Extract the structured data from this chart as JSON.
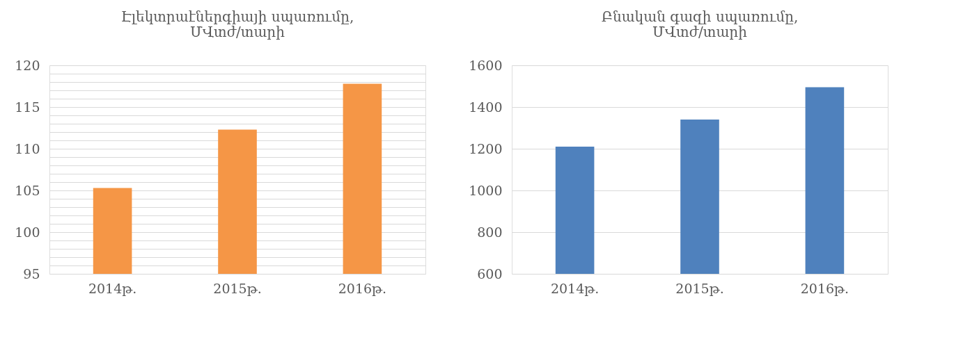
{
  "chart_data": [
    {
      "type": "bar",
      "title": "Էլեկտրաէներգիայի սպառումը,\nՄՎտժ/տարի",
      "categories": [
        "2014թ.",
        "2015թ.",
        "2016թ."
      ],
      "series": [
        {
          "color": "#f59646",
          "values": [
            105.3,
            112.3,
            117.8
          ]
        }
      ],
      "ylim": [
        95,
        120
      ],
      "yticks": [
        95,
        {
          "value": 96,
          "label": null
        },
        {
          "value": 97,
          "label": null
        },
        {
          "value": 98,
          "label": null
        },
        {
          "value": 99,
          "label": null
        },
        100,
        {
          "value": 101,
          "label": null
        },
        {
          "value": 102,
          "label": null
        },
        {
          "value": 103,
          "label": null
        },
        {
          "value": 104,
          "label": null
        },
        105,
        {
          "value": 106,
          "label": null
        },
        {
          "value": 107,
          "label": null
        },
        {
          "value": 108,
          "label": null
        },
        {
          "value": 109,
          "label": null
        },
        110,
        {
          "value": 111,
          "label": null
        },
        {
          "value": 112,
          "label": null
        },
        {
          "value": 113,
          "label": null
        },
        {
          "value": 114,
          "label": null
        },
        115,
        {
          "value": 116,
          "label": null
        },
        {
          "value": 117,
          "label": null
        },
        {
          "value": 118,
          "label": null
        },
        {
          "value": 119,
          "label": null
        },
        120
      ],
      "grid": "y",
      "legend": false
    },
    {
      "type": "bar",
      "title": "Բնական գազի սպառումը,\nՄՎտժ/տարի",
      "categories": [
        "2014թ.",
        "2015թ.",
        "2016թ."
      ],
      "series": [
        {
          "color": "#4f81bd",
          "values": [
            1210,
            1340,
            1495
          ]
        }
      ],
      "ylim": [
        600,
        1600
      ],
      "yticks": [
        600,
        800,
        1000,
        1200,
        1400,
        1600
      ],
      "grid": "y",
      "legend": false
    }
  ]
}
